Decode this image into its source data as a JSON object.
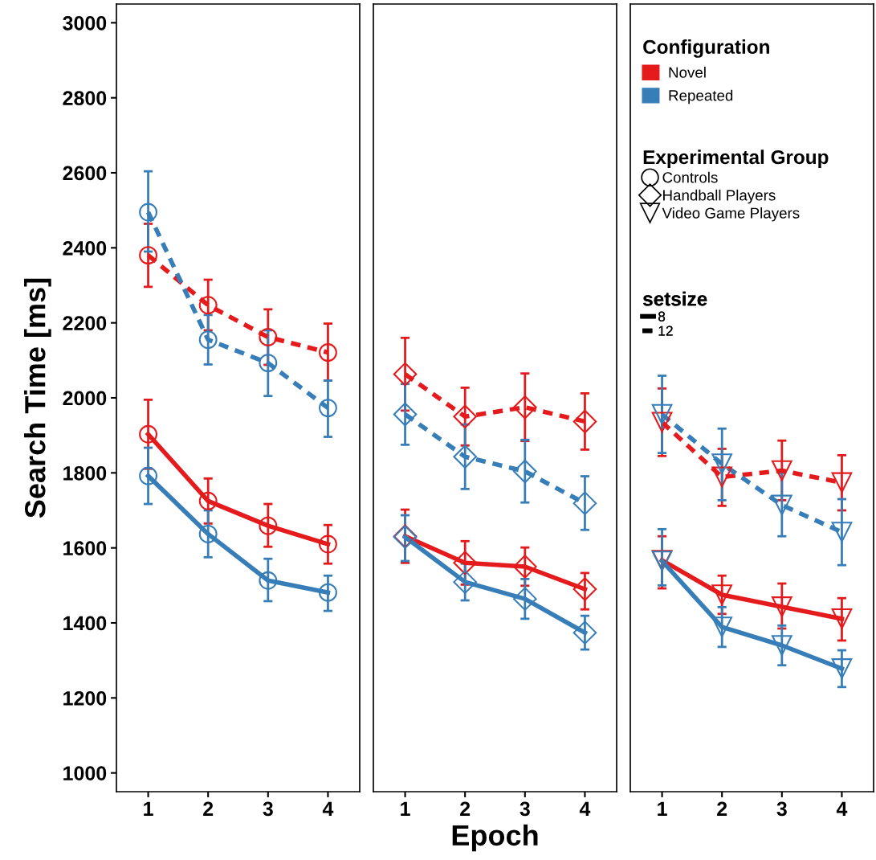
{
  "chart_data": [
    {
      "type": "line",
      "ylabel": "Search Time [ms]",
      "categories": [
        "1",
        "2",
        "3",
        "4"
      ],
      "ylim": [
        950,
        3050
      ],
      "yticks": [
        1000,
        1200,
        1400,
        1600,
        1800,
        2000,
        2200,
        2400,
        2600,
        2800,
        3000
      ],
      "marker": "circle",
      "grid": false,
      "legend": false,
      "series": [
        {
          "color": "#e41a1c",
          "line_style": "solid",
          "values": [
            1903,
            1725,
            1659,
            1610
          ],
          "errors": [
            [
              1811,
              1995
            ],
            [
              1665,
              1785
            ],
            [
              1603,
              1717
            ],
            [
              1558,
              1661
            ]
          ]
        },
        {
          "color": "#377eb8",
          "line_style": "solid",
          "values": [
            1792,
            1637,
            1513,
            1481
          ],
          "errors": [
            [
              1717,
              1867
            ],
            [
              1575,
              1700
            ],
            [
              1458,
              1571
            ],
            [
              1432,
              1526
            ]
          ]
        },
        {
          "color": "#e41a1c",
          "line_style": "dashed",
          "values": [
            2380,
            2247,
            2162,
            2121
          ],
          "errors": [
            [
              2296,
              2464
            ],
            [
              2180,
              2315
            ],
            [
              2088,
              2236
            ],
            [
              2046,
              2198
            ]
          ]
        },
        {
          "color": "#377eb8",
          "line_style": "dashed",
          "values": [
            2495,
            2155,
            2093,
            1973
          ],
          "errors": [
            [
              2390,
              2604
            ],
            [
              2089,
              2221
            ],
            [
              2005,
              2180
            ],
            [
              1896,
              2046
            ]
          ]
        }
      ]
    },
    {
      "type": "line",
      "xlabel": "Epoch",
      "categories": [
        "1",
        "2",
        "3",
        "4"
      ],
      "ylim": [
        950,
        3050
      ],
      "yticks": [
        1000,
        1200,
        1400,
        1600,
        1800,
        2000,
        2200,
        2400,
        2600,
        2800,
        3000
      ],
      "tick_labels": "x",
      "marker": "diamond",
      "grid": false,
      "legend": false,
      "series": [
        {
          "color": "#e41a1c",
          "line_style": "solid",
          "values": [
            1631,
            1560,
            1550,
            1490
          ],
          "errors": [
            [
              1560,
              1702
            ],
            [
              1502,
              1618
            ],
            [
              1499,
              1601
            ],
            [
              1436,
              1533
            ]
          ]
        },
        {
          "color": "#377eb8",
          "line_style": "solid",
          "values": [
            1629,
            1509,
            1464,
            1374
          ],
          "errors": [
            [
              1565,
              1687
            ],
            [
              1460,
              1558
            ],
            [
              1411,
              1517
            ],
            [
              1329,
              1419
            ]
          ]
        },
        {
          "color": "#e41a1c",
          "line_style": "dashed",
          "values": [
            2063,
            1950,
            1975,
            1937
          ],
          "errors": [
            [
              1966,
              2160
            ],
            [
              1873,
              2027
            ],
            [
              1885,
              2065
            ],
            [
              1862,
              2012
            ]
          ]
        },
        {
          "color": "#377eb8",
          "line_style": "dashed",
          "values": [
            1956,
            1843,
            1804,
            1719
          ],
          "errors": [
            [
              1875,
              2037
            ],
            [
              1757,
              1929
            ],
            [
              1721,
              1888
            ],
            [
              1648,
              1791
            ]
          ]
        }
      ]
    },
    {
      "type": "line",
      "categories": [
        "1",
        "2",
        "3",
        "4"
      ],
      "ylim": [
        950,
        3050
      ],
      "yticks": [
        1000,
        1200,
        1400,
        1600,
        1800,
        2000,
        2200,
        2400,
        2600,
        2800,
        3000
      ],
      "tick_labels": "x",
      "marker": "triangle",
      "grid": false,
      "legend": "top left",
      "legend_title": "Configuration",
      "annotations": [
        "Experimental Group",
        "Controls",
        "Handball Players",
        "Video Game Players",
        "setsize",
        "8",
        "12"
      ],
      "series": [
        {
          "name": "Novel",
          "color": "#e41a1c",
          "line_style": "solid",
          "values": [
            1567,
            1475,
            1443,
            1411
          ],
          "errors": [
            [
              1492,
              1631
            ],
            [
              1424,
              1526
            ],
            [
              1385,
              1505
            ],
            [
              1353,
              1466
            ]
          ]
        },
        {
          "name": "Repeated",
          "color": "#377eb8",
          "line_style": "solid",
          "values": [
            1565,
            1389,
            1340,
            1278
          ],
          "errors": [
            [
              1500,
              1650
            ],
            [
              1336,
              1442
            ],
            [
              1287,
              1393
            ],
            [
              1229,
              1327
            ]
          ]
        },
        {
          "color": "#e41a1c",
          "line_style": "dashed",
          "values": [
            1935,
            1789,
            1806,
            1774
          ],
          "errors": [
            [
              1845,
              2025
            ],
            [
              1712,
              1864
            ],
            [
              1727,
              1886
            ],
            [
              1700,
              1847
            ]
          ]
        },
        {
          "color": "#377eb8",
          "line_style": "dashed",
          "values": [
            1956,
            1824,
            1714,
            1642
          ],
          "errors": [
            [
              1853,
              2059
            ],
            [
              1727,
              1918
            ],
            [
              1631,
              1800
            ],
            [
              1554,
              1730
            ]
          ]
        }
      ]
    }
  ]
}
